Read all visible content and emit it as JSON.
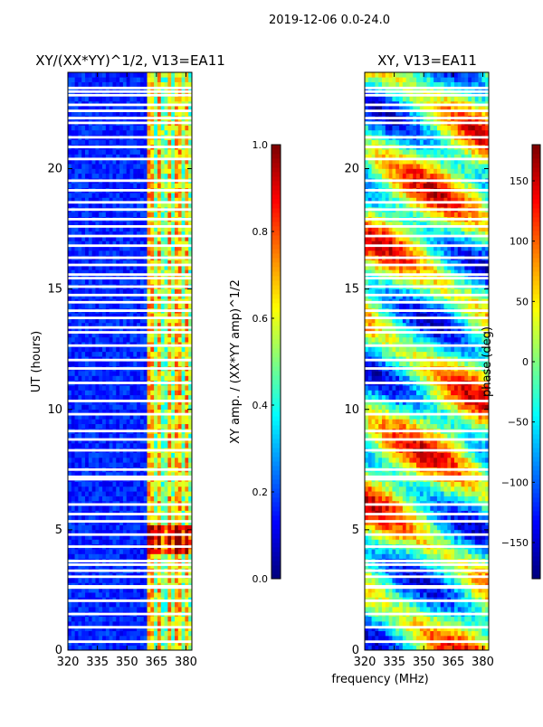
{
  "chart_data": {
    "suptitle": "2019-12-06 0.0-24.0",
    "xlabel_shared": "frequency (MHz)",
    "panels": [
      {
        "type": "heatmap",
        "title": "XY/(XX*YY)^1/2, V13=EA11",
        "ylabel": "UT (hours)",
        "xlim": [
          320,
          383
        ],
        "ylim": [
          0,
          24
        ],
        "xticks": [
          320,
          335,
          350,
          365,
          380
        ],
        "yticks": [
          0,
          5,
          10,
          15,
          20
        ],
        "colormap": "jet",
        "colorbar": {
          "label": "XY amp. / (XX*YY amp)^1/2",
          "range": [
            0.0,
            1.0
          ],
          "ticks": [
            "0.0",
            "0.2",
            "0.4",
            "0.6",
            "0.8",
            "1.0"
          ],
          "tick_values": [
            0.0,
            0.2,
            0.4,
            0.6,
            0.8,
            1.0
          ]
        },
        "pattern": "low background; high values in bands 361-381 MHz",
        "band_start_mhz": 361
      },
      {
        "type": "heatmap",
        "title": "XY, V13=EA11",
        "ylabel": "",
        "xlim": [
          320,
          383
        ],
        "ylim": [
          0,
          24
        ],
        "xticks": [
          320,
          335,
          350,
          365,
          380
        ],
        "yticks": [
          0,
          5,
          10,
          15,
          20
        ],
        "colormap": "jet",
        "colorbar": {
          "label": "phase (deg)",
          "range": [
            -180,
            180
          ],
          "ticks": [
            "−150",
            "−100",
            "−50",
            "0",
            "50",
            "100",
            "150"
          ],
          "tick_values": [
            -150,
            -100,
            -50,
            0,
            50,
            100,
            150
          ]
        },
        "pattern": "phase varying smoothly in time and frequency, wrapped"
      }
    ],
    "white_gaps_hours": [
      0.35,
      0.95,
      1.5,
      2.05,
      2.6,
      2.65,
      3.05,
      3.3,
      3.55,
      3.7,
      4.3,
      4.8,
      5.35,
      5.65,
      6.05,
      7.1,
      7.2,
      7.5,
      8.3,
      8.75,
      9.1,
      9.8,
      10.35,
      11.1,
      11.7,
      12.05,
      12.65,
      13.2,
      13.4,
      13.8,
      14.1,
      14.45,
      14.75,
      15.1,
      15.45,
      15.6,
      16.0,
      16.3,
      16.8,
      17.2,
      17.6,
      17.9,
      18.3,
      18.6,
      19.1,
      19.5,
      20.4,
      20.9,
      21.3,
      21.9,
      22.1,
      22.4,
      22.65,
      23.05,
      23.2,
      23.35
    ]
  }
}
